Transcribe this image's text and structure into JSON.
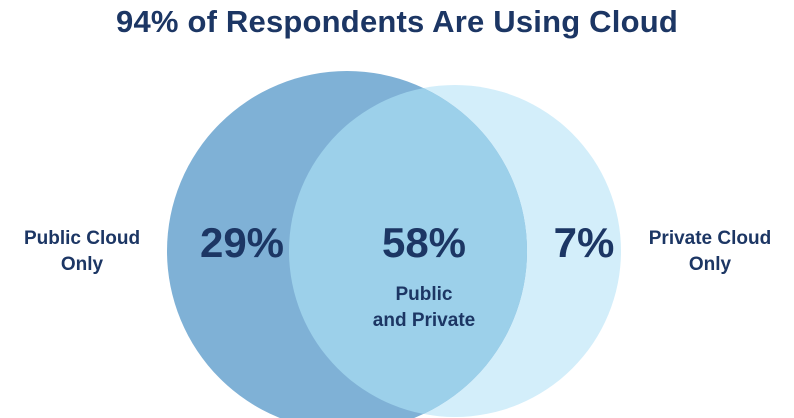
{
  "title": "94% of Respondents Are Using Cloud",
  "colors": {
    "public_circle": "#7fb1d6",
    "private_circle": "#d3eefa",
    "overlap": "#9cd0ea",
    "text": "#1c3664"
  },
  "regions": {
    "public_only": {
      "label_line1": "Public Cloud",
      "label_line2": "Only",
      "value": "29%"
    },
    "both": {
      "label_line1": "Public",
      "label_line2": "and Private",
      "value": "58%"
    },
    "private_only": {
      "label_line1": "Private Cloud",
      "label_line2": "Only",
      "value": "7%"
    }
  }
}
